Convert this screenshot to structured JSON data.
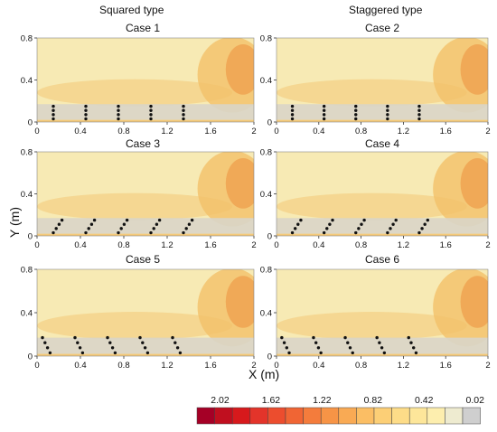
{
  "figure": {
    "col_titles": [
      "Squared type",
      "Staggered type"
    ],
    "xlabel": "X (m)",
    "ylabel": "Y (m)"
  },
  "colors": {
    "background_field": "#f7eab4",
    "low_band": "#d9d5c8",
    "warm": "#f2c069",
    "hot": "#ee9b48",
    "stem_dot": "#111111"
  },
  "chart_data": [
    {
      "type": "heatmap",
      "title": "Case 1",
      "layout": "squared",
      "xlim": [
        0,
        2
      ],
      "ylim": [
        0,
        0.8
      ],
      "xticks": [
        "0",
        "0.4",
        "0.8",
        "1.2",
        "1.6",
        "2"
      ],
      "yticks": [
        "0",
        "0.4",
        "0.8"
      ],
      "stem_rows": [
        {
          "x": [
            0.15,
            0.15
          ],
          "y": [
            0.03,
            0.15
          ]
        },
        {
          "x": [
            0.45,
            0.45
          ],
          "y": [
            0.03,
            0.15
          ]
        },
        {
          "x": [
            0.75,
            0.75
          ],
          "y": [
            0.03,
            0.15
          ]
        },
        {
          "x": [
            1.05,
            1.05
          ],
          "y": [
            0.03,
            0.15
          ]
        },
        {
          "x": [
            1.35,
            1.35
          ],
          "y": [
            0.03,
            0.15
          ]
        }
      ]
    },
    {
      "type": "heatmap",
      "title": "Case 2",
      "layout": "staggered",
      "xlim": [
        0,
        2
      ],
      "ylim": [
        0,
        0.8
      ],
      "xticks": [
        "0",
        "0.4",
        "0.8",
        "1.2",
        "1.6",
        "2"
      ],
      "yticks": [
        "0",
        "0.4",
        "0.8"
      ],
      "stem_rows": [
        {
          "x": [
            0.15,
            0.15
          ],
          "y": [
            0.03,
            0.15
          ]
        },
        {
          "x": [
            0.45,
            0.45
          ],
          "y": [
            0.03,
            0.15
          ]
        },
        {
          "x": [
            0.75,
            0.75
          ],
          "y": [
            0.03,
            0.15
          ]
        },
        {
          "x": [
            1.05,
            1.05
          ],
          "y": [
            0.03,
            0.15
          ]
        },
        {
          "x": [
            1.35,
            1.35
          ],
          "y": [
            0.03,
            0.15
          ]
        }
      ]
    },
    {
      "type": "heatmap",
      "title": "Case 3",
      "layout": "squared",
      "xlim": [
        0,
        2
      ],
      "ylim": [
        0,
        0.8
      ],
      "xticks": [
        "0",
        "0.4",
        "0.8",
        "1.2",
        "1.6",
        "2"
      ],
      "yticks": [
        "0",
        "0.4",
        "0.8"
      ],
      "stem_rows": [
        {
          "x": [
            0.15,
            0.23
          ],
          "y": [
            0.03,
            0.15
          ]
        },
        {
          "x": [
            0.45,
            0.53
          ],
          "y": [
            0.03,
            0.15
          ]
        },
        {
          "x": [
            0.75,
            0.83
          ],
          "y": [
            0.03,
            0.15
          ]
        },
        {
          "x": [
            1.05,
            1.13
          ],
          "y": [
            0.03,
            0.15
          ]
        },
        {
          "x": [
            1.35,
            1.43
          ],
          "y": [
            0.03,
            0.15
          ]
        }
      ]
    },
    {
      "type": "heatmap",
      "title": "Case 4",
      "layout": "staggered",
      "xlim": [
        0,
        2
      ],
      "ylim": [
        0,
        0.8
      ],
      "xticks": [
        "0",
        "0.4",
        "0.8",
        "1.2",
        "1.6",
        "2"
      ],
      "yticks": [
        "0",
        "0.4",
        "0.8"
      ],
      "stem_rows": [
        {
          "x": [
            0.15,
            0.23
          ],
          "y": [
            0.03,
            0.15
          ]
        },
        {
          "x": [
            0.45,
            0.53
          ],
          "y": [
            0.03,
            0.15
          ]
        },
        {
          "x": [
            0.75,
            0.83
          ],
          "y": [
            0.03,
            0.15
          ]
        },
        {
          "x": [
            1.05,
            1.13
          ],
          "y": [
            0.03,
            0.15
          ]
        },
        {
          "x": [
            1.35,
            1.43
          ],
          "y": [
            0.03,
            0.15
          ]
        }
      ]
    },
    {
      "type": "heatmap",
      "title": "Case 5",
      "layout": "squared",
      "xlim": [
        0,
        2
      ],
      "ylim": [
        0,
        0.8
      ],
      "xticks": [
        "0",
        "0.4",
        "0.8",
        "1.2",
        "1.6",
        "2"
      ],
      "yticks": [
        "0",
        "0.4",
        "0.8"
      ],
      "stem_rows": [
        {
          "x": [
            0.05,
            0.12
          ],
          "y": [
            0.17,
            0.03
          ]
        },
        {
          "x": [
            0.35,
            0.42
          ],
          "y": [
            0.17,
            0.03
          ]
        },
        {
          "x": [
            0.65,
            0.72
          ],
          "y": [
            0.17,
            0.03
          ]
        },
        {
          "x": [
            0.95,
            1.02
          ],
          "y": [
            0.17,
            0.03
          ]
        },
        {
          "x": [
            1.25,
            1.32
          ],
          "y": [
            0.17,
            0.03
          ]
        }
      ]
    },
    {
      "type": "heatmap",
      "title": "Case 6",
      "layout": "staggered",
      "xlim": [
        0,
        2
      ],
      "ylim": [
        0,
        0.8
      ],
      "xticks": [
        "0",
        "0.4",
        "0.8",
        "1.2",
        "1.6",
        "2"
      ],
      "yticks": [
        "0",
        "0.4",
        "0.8"
      ],
      "stem_rows": [
        {
          "x": [
            0.05,
            0.12
          ],
          "y": [
            0.17,
            0.03
          ]
        },
        {
          "x": [
            0.35,
            0.42
          ],
          "y": [
            0.17,
            0.03
          ]
        },
        {
          "x": [
            0.65,
            0.72
          ],
          "y": [
            0.17,
            0.03
          ]
        },
        {
          "x": [
            0.95,
            1.02
          ],
          "y": [
            0.17,
            0.03
          ]
        },
        {
          "x": [
            1.25,
            1.32
          ],
          "y": [
            0.17,
            0.03
          ]
        }
      ]
    }
  ],
  "colorbar": {
    "labels": [
      "2.02",
      "1.62",
      "1.22",
      "0.82",
      "0.42",
      "0.02"
    ],
    "colors": [
      "#a50026",
      "#c00f1f",
      "#d7191c",
      "#e3342a",
      "#ec4d2e",
      "#f06534",
      "#f47c3c",
      "#f79446",
      "#f9aa54",
      "#fbbe64",
      "#fccf76",
      "#fddc88",
      "#fde69a",
      "#fdeeae",
      "#eeebd0",
      "#cfcfcf"
    ]
  }
}
